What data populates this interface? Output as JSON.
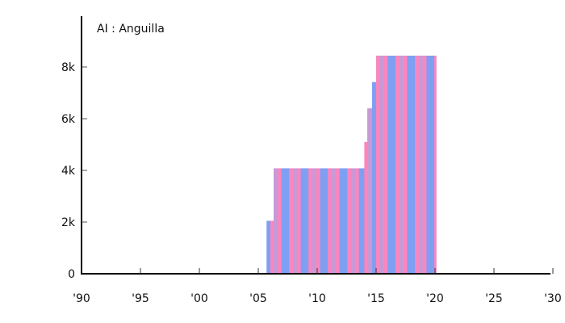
{
  "chart_data": {
    "type": "area",
    "title": "AI : Anguilla",
    "xlabel": "",
    "ylabel": "",
    "xlim": [
      1990,
      2030
    ],
    "ylim": [
      0,
      9800
    ],
    "x_ticks": [
      "'90",
      "'95",
      "'00",
      "'05",
      "'10",
      "'15",
      "'20",
      "'25",
      "'30"
    ],
    "y_ticks": [
      "0",
      "2k",
      "4k",
      "6k",
      "8k"
    ],
    "grid": false,
    "legend": null,
    "series": [
      {
        "name": "AI : Anguilla",
        "steps": [
          {
            "x0": 2005.7,
            "x1": 2006.3,
            "y": 2050
          },
          {
            "x0": 2006.3,
            "x1": 2014.0,
            "y": 4080
          },
          {
            "x0": 2014.0,
            "x1": 2014.25,
            "y": 5100
          },
          {
            "x0": 2014.25,
            "x1": 2014.65,
            "y": 6400
          },
          {
            "x0": 2014.65,
            "x1": 2015.0,
            "y": 7420
          },
          {
            "x0": 2015.0,
            "x1": 2020.1,
            "y": 8440
          }
        ]
      }
    ],
    "colors": {
      "blue": "#7f9ff2",
      "pink": "#f986c0",
      "mauve": "#c79ad6",
      "axis": "#000000"
    }
  }
}
